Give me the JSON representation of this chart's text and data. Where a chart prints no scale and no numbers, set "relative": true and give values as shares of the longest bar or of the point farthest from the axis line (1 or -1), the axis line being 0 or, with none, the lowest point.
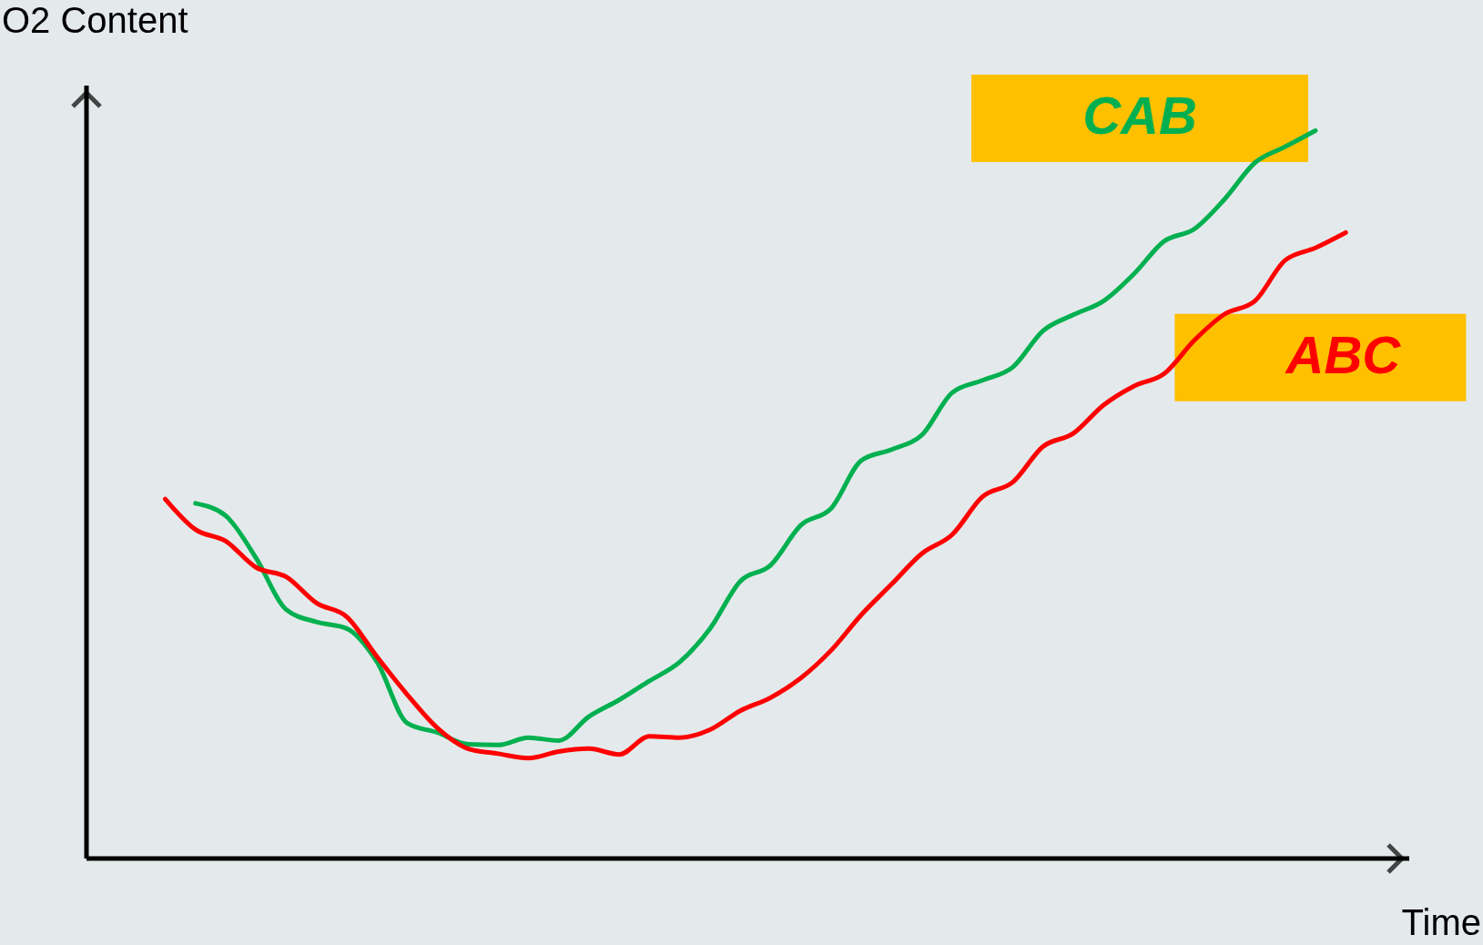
{
  "chart_data": {
    "type": "line",
    "relative": true,
    "xlabel": "Time",
    "ylabel": "O2 Content",
    "categories": [
      null,
      null,
      null,
      null,
      null,
      null,
      null,
      null,
      null,
      null,
      null,
      null,
      null,
      null,
      null,
      null,
      null,
      null,
      null,
      null,
      null,
      null,
      null,
      null,
      null,
      null,
      null,
      null,
      null,
      null,
      null,
      null,
      null,
      null,
      null,
      null,
      null,
      null,
      null,
      null
    ],
    "series": [
      {
        "name": "CAB",
        "color": "#00b050",
        "values": [
          null,
          0.488,
          0.471,
          0.413,
          0.342,
          0.325,
          0.316,
          0.27,
          0.186,
          0.173,
          0.157,
          0.156,
          0.166,
          0.162,
          0.195,
          0.218,
          0.244,
          0.27,
          0.316,
          0.381,
          0.403,
          0.458,
          0.481,
          0.547,
          0.562,
          0.582,
          0.64,
          0.657,
          0.675,
          0.725,
          0.747,
          0.766,
          0.803,
          0.848,
          0.865,
          0.906,
          0.956,
          0.978,
          1.0,
          null
        ]
      },
      {
        "name": "ABC",
        "color": "#ff0000",
        "values": [
          0.494,
          0.452,
          0.436,
          0.4,
          0.387,
          0.351,
          0.332,
          0.277,
          0.225,
          0.179,
          0.151,
          0.144,
          0.138,
          0.147,
          0.151,
          0.143,
          0.168,
          0.166,
          0.177,
          0.203,
          0.221,
          0.248,
          0.286,
          0.335,
          0.377,
          0.419,
          0.445,
          0.497,
          0.517,
          0.566,
          0.584,
          0.623,
          0.649,
          0.666,
          0.712,
          0.748,
          0.766,
          0.822,
          0.839,
          0.86
        ]
      }
    ],
    "line_style": "solid",
    "marker": "none"
  }
}
